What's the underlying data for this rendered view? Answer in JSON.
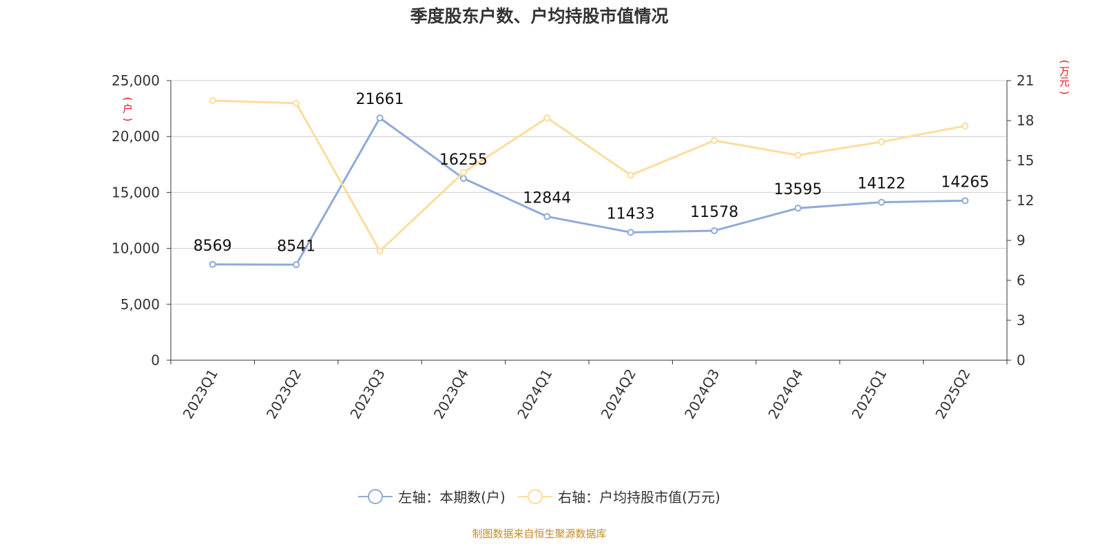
{
  "title": "季度股东户数、户均持股市值情况",
  "source": "制图数据来自恒生聚源数据库",
  "colors": {
    "series_left": "#8eaad8",
    "series_right": "#fddc9c",
    "unit_label": "#e8141c",
    "source": "#c08d28",
    "grid": "#cccccc",
    "axis": "#333333"
  },
  "left_axis_unit": "(户)",
  "right_axis_unit": "(万元)",
  "chart_data": {
    "type": "line",
    "categories": [
      "2023Q1",
      "2023Q2",
      "2023Q3",
      "2023Q4",
      "2024Q1",
      "2024Q2",
      "2024Q3",
      "2024Q4",
      "2025Q1",
      "2025Q2"
    ],
    "series": [
      {
        "name": "左轴：本期数(户)",
        "axis": "left",
        "values": [
          8569,
          8541,
          21661,
          16255,
          12844,
          11433,
          11578,
          13595,
          14122,
          14265
        ],
        "data_labels": [
          "8569",
          "8541",
          "21661",
          "16255",
          "12844",
          "11433",
          "11578",
          "13595",
          "14122",
          "14265"
        ]
      },
      {
        "name": "右轴：户均持股市值(万元)",
        "axis": "right",
        "values": [
          19.5,
          19.3,
          8.2,
          14.1,
          18.2,
          13.9,
          16.5,
          15.4,
          16.4,
          17.6
        ]
      }
    ],
    "y_left": {
      "lim": [
        0,
        25000
      ],
      "ticks": [
        0,
        5000,
        10000,
        15000,
        20000,
        25000
      ],
      "tick_labels": [
        "0",
        "5,000",
        "10,000",
        "15,000",
        "20,000",
        "25,000"
      ]
    },
    "y_right": {
      "lim": [
        0,
        21
      ],
      "ticks": [
        0,
        3,
        6,
        9,
        12,
        15,
        18,
        21
      ],
      "tick_labels": [
        "0",
        "3",
        "6",
        "9",
        "12",
        "15",
        "18",
        "21"
      ]
    },
    "grid": true,
    "legend_position": "bottom"
  }
}
